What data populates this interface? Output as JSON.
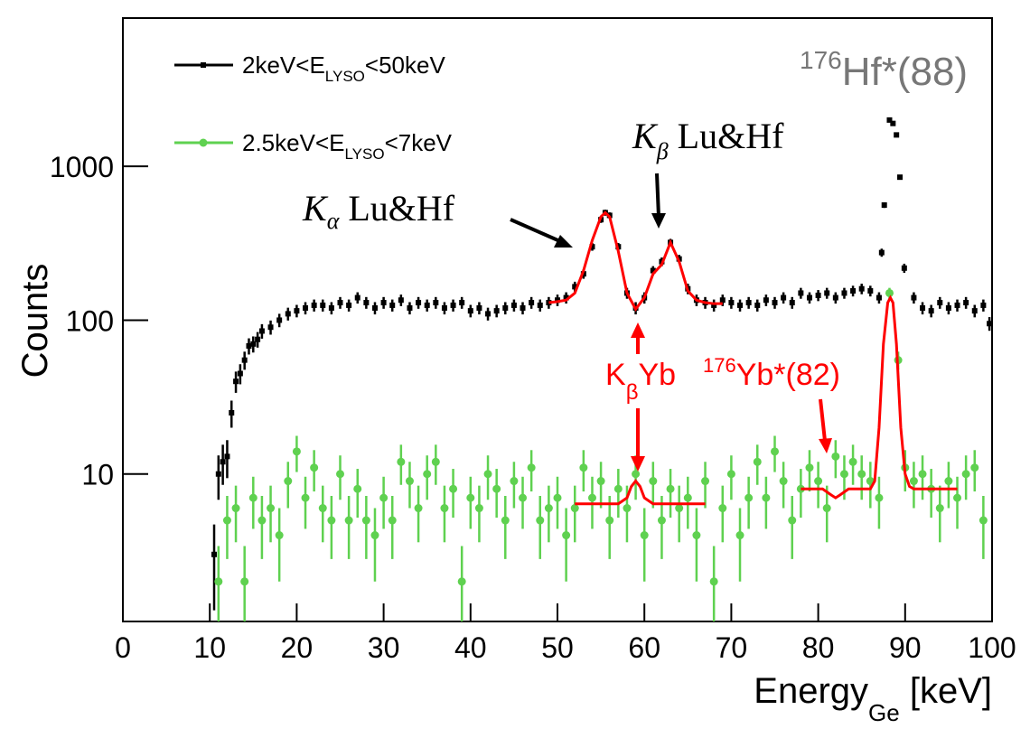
{
  "chart_data": {
    "type": "scatter",
    "log_y": true,
    "xlim": [
      0,
      100
    ],
    "ylim": [
      1.1,
      9200
    ],
    "xticks": [
      0,
      10,
      20,
      30,
      40,
      50,
      60,
      70,
      80,
      90,
      100
    ],
    "yticks": [
      10,
      100,
      1000
    ],
    "x_label": {
      "text": "Energy",
      "sub": "Ge",
      "rest": " [keV]"
    },
    "y_label": "Counts",
    "series": [
      {
        "name": {
          "text": "2keV<E",
          "sub": "LYSO",
          "rest": "<50keV"
        },
        "color": "#000000",
        "marker": "square",
        "x": [
          10.5,
          11,
          11.5,
          12,
          12.5,
          13,
          13.5,
          14,
          14.5,
          15,
          15.5,
          16,
          17,
          18,
          19,
          20,
          21,
          22,
          23,
          24,
          25,
          26,
          27,
          28,
          29,
          30,
          31,
          32,
          33,
          34,
          35,
          36,
          37,
          38,
          39,
          40,
          41,
          42,
          43,
          44,
          45,
          46,
          47,
          48,
          49,
          50,
          51,
          52,
          53,
          54,
          55,
          55.5,
          56,
          57,
          58,
          59,
          60,
          61,
          62,
          63,
          64,
          65,
          66,
          67,
          68,
          69,
          70,
          71,
          72,
          73,
          74,
          75,
          76,
          77,
          78,
          79,
          80,
          81,
          82,
          83,
          84,
          85,
          86,
          87,
          87.3,
          87.6,
          88.2,
          88.6,
          89,
          89.4,
          89.9,
          91,
          92,
          93,
          94,
          95,
          96,
          97,
          98,
          99,
          99.7
        ],
        "values": [
          3,
          10,
          12,
          13,
          25,
          40,
          45,
          55,
          68,
          70,
          75,
          85,
          90,
          100,
          110,
          115,
          120,
          125,
          125,
          120,
          130,
          125,
          140,
          130,
          120,
          130,
          125,
          135,
          120,
          130,
          125,
          130,
          120,
          125,
          130,
          115,
          120,
          110,
          115,
          120,
          125,
          120,
          130,
          125,
          130,
          135,
          140,
          165,
          200,
          300,
          450,
          500,
          480,
          300,
          150,
          120,
          140,
          210,
          240,
          320,
          250,
          160,
          135,
          130,
          125,
          135,
          130,
          125,
          130,
          125,
          135,
          130,
          140,
          130,
          150,
          140,
          145,
          150,
          140,
          150,
          155,
          160,
          155,
          140,
          275,
          560,
          2000,
          1900,
          1600,
          850,
          218,
          140,
          120,
          115,
          130,
          120,
          125,
          130,
          115,
          125,
          95
        ],
        "errors": [
          1.7,
          3.2,
          3.5,
          3.6,
          5,
          6.3,
          6.7,
          7.4,
          8.2,
          8.4,
          8.7,
          9.2,
          9.5,
          10,
          10.5,
          10.7,
          11,
          11.2,
          11.2,
          11,
          11.4,
          11.2,
          11.8,
          11.4,
          11,
          11.4,
          11.2,
          11.6,
          11,
          11.4,
          11.2,
          11.4,
          11,
          11.2,
          11.4,
          10.7,
          11,
          10.5,
          10.7,
          11,
          11.2,
          11,
          11.4,
          11.2,
          11.4,
          11.6,
          11.8,
          12.8,
          14.1,
          17.3,
          21.2,
          22.4,
          21.9,
          17.3,
          12.2,
          11,
          11.8,
          14.5,
          15.5,
          17.9,
          15.8,
          12.6,
          11.6,
          11.4,
          11.2,
          11.6,
          11.4,
          11.2,
          11.4,
          11.2,
          11.6,
          11.4,
          11.8,
          11.4,
          12.2,
          11.8,
          12,
          12.2,
          11.8,
          12.2,
          12.4,
          12.6,
          12.4,
          11.8,
          16.6,
          23.7,
          44.7,
          43.6,
          40,
          29.2,
          14.8,
          11.8,
          11,
          10.7,
          11.4,
          11,
          11.2,
          11.4,
          10.7,
          11.2,
          9.7
        ]
      },
      {
        "name": {
          "text": "2.5keV<E",
          "sub": "LYSO",
          "rest": "<7keV"
        },
        "color": "#5fd150",
        "marker": "circle",
        "x": [
          11,
          12,
          13,
          14,
          15,
          16,
          17,
          18,
          19,
          20,
          21,
          22,
          23,
          24,
          25,
          26,
          27,
          28,
          29,
          30,
          31,
          32,
          33,
          34,
          35,
          36,
          37,
          38,
          39,
          40,
          41,
          42,
          43,
          44,
          45,
          46,
          47,
          48,
          49,
          50,
          51,
          52,
          53,
          54,
          55,
          56,
          57,
          58,
          59,
          60,
          61,
          62,
          63,
          64,
          65,
          66,
          67,
          68,
          69,
          70,
          71,
          72,
          73,
          74,
          75,
          76,
          77,
          78,
          79,
          80,
          81,
          82,
          83,
          84,
          85,
          86,
          87,
          88.2,
          89.2,
          90,
          91,
          92,
          93,
          94,
          95,
          96,
          97,
          98,
          99
        ],
        "values": [
          2,
          5,
          6,
          2,
          7,
          5,
          6,
          4,
          9,
          14,
          7,
          11,
          6,
          5,
          10,
          5,
          8,
          5,
          4,
          7,
          5,
          12,
          9,
          6,
          10,
          12,
          6,
          8,
          2,
          7,
          6,
          10,
          8,
          5,
          9,
          7,
          11,
          5,
          6,
          7,
          4,
          6,
          11,
          7,
          9,
          5,
          8,
          6,
          10,
          4,
          9,
          5,
          8,
          6,
          7,
          4,
          9,
          2,
          6,
          10,
          4,
          7,
          12,
          7,
          14,
          9,
          5,
          8,
          11,
          9,
          6,
          13,
          10,
          12,
          10,
          9,
          7,
          150,
          55,
          11,
          9,
          10,
          8,
          6,
          9,
          7,
          10,
          11,
          5
        ],
        "errors": [
          1.4,
          2.2,
          2.4,
          1.4,
          2.6,
          2.2,
          2.4,
          2,
          3,
          3.7,
          2.6,
          3.3,
          2.4,
          2.2,
          3.2,
          2.2,
          2.8,
          2.2,
          2,
          2.6,
          2.2,
          3.5,
          3,
          2.4,
          3.2,
          3.5,
          2.4,
          2.8,
          1.4,
          2.6,
          2.4,
          3.2,
          2.8,
          2.2,
          3,
          2.6,
          3.3,
          2.2,
          2.4,
          2.6,
          2,
          2.4,
          3.3,
          2.6,
          3,
          2.2,
          2.8,
          2.4,
          3.2,
          2,
          3,
          2.2,
          2.8,
          2.4,
          2.6,
          2,
          3,
          1.4,
          2.4,
          3.2,
          2,
          2.6,
          3.5,
          2.6,
          3.7,
          3,
          2.2,
          2.8,
          3.3,
          3,
          2.4,
          3.6,
          3.2,
          3.5,
          3.2,
          3,
          2.6,
          12.2,
          7.4,
          3.3,
          3,
          3.2,
          2.8,
          2.4,
          3,
          2.6,
          3.2,
          3.3,
          2.2
        ]
      }
    ],
    "fits": [
      {
        "color": "#ff0000",
        "x": [
          49,
          50,
          51,
          52,
          53,
          54,
          55,
          55.5,
          56,
          57,
          58,
          59,
          60,
          61,
          62,
          63,
          64,
          65,
          66,
          67,
          68,
          69
        ],
        "values": [
          130,
          132,
          135,
          150,
          210,
          330,
          470,
          500,
          470,
          280,
          150,
          118,
          140,
          200,
          230,
          320,
          240,
          155,
          135,
          130,
          128,
          128
        ]
      },
      {
        "color": "#ff0000",
        "x": [
          52,
          57,
          58,
          58.5,
          59,
          59.5,
          60,
          61,
          67
        ],
        "values": [
          6.4,
          6.4,
          7,
          8.3,
          9,
          8.3,
          7,
          6.4,
          6.4
        ]
      },
      {
        "color": "#ff0000",
        "x": [
          78,
          80.5,
          81.5,
          82,
          82.5,
          83.5,
          86,
          86.5,
          87,
          87.5,
          88,
          88.3,
          88.6,
          89,
          89.5,
          90,
          90.5,
          91,
          96
        ],
        "values": [
          8,
          8,
          7.3,
          7,
          7.3,
          8,
          8,
          9,
          20,
          70,
          130,
          140,
          130,
          70,
          20,
          10,
          8.3,
          8,
          8
        ]
      }
    ],
    "annotations": [
      {
        "text": "K",
        "sub": "α",
        "rest": " Lu&Hf"
      },
      {
        "text": "K",
        "sub": "β",
        "rest": " Lu&Hf"
      },
      {
        "text": "K",
        "sub": "β",
        "rest": "Yb"
      },
      {
        "sup": "176",
        "text": "Yb*(82)"
      },
      {
        "sup": "176",
        "text": "Hf*(88)"
      }
    ]
  }
}
